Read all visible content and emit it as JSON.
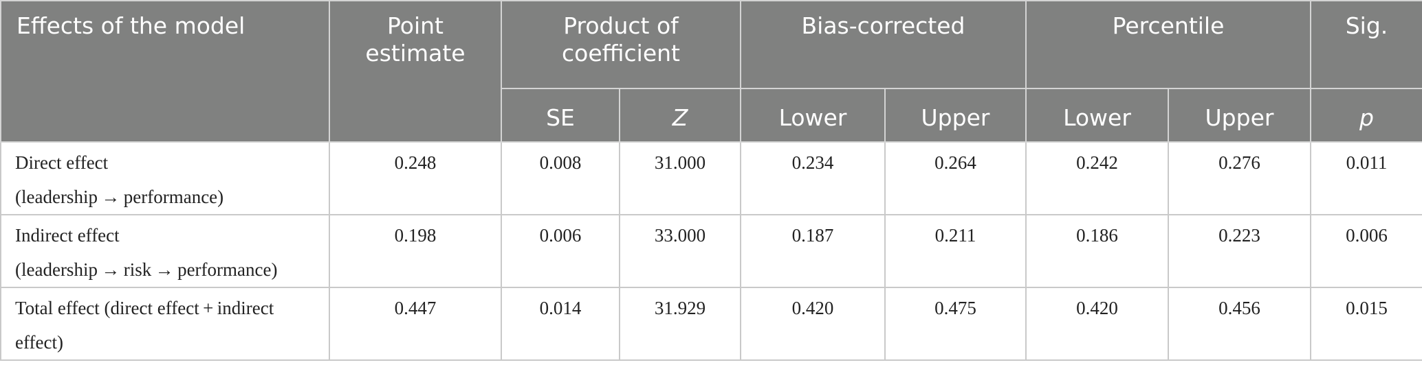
{
  "table": {
    "header": {
      "effects": "Effects of the model",
      "point_estimate": "Point estimate",
      "product": "Product of coefficient",
      "bias": "Bias-corrected",
      "percentile": "Percentile",
      "sig": "Sig.",
      "se": "SE",
      "z": "Z",
      "bc_lower": "Lower",
      "bc_upper": "Upper",
      "pc_lower": "Lower",
      "pc_upper": "Upper",
      "p": "p"
    },
    "rows": [
      {
        "label_line1": "Direct effect",
        "label_line2": "(leadership → performance)",
        "point": "0.248",
        "se": "0.008",
        "z": "31.000",
        "bc_lower": "0.234",
        "bc_upper": "0.264",
        "pc_lower": "0.242",
        "pc_upper": "0.276",
        "p": "0.011"
      },
      {
        "label_line1": "Indirect effect",
        "label_line2": "(leadership → risk → performance)",
        "point": "0.198",
        "se": "0.006",
        "z": "33.000",
        "bc_lower": "0.187",
        "bc_upper": "0.211",
        "pc_lower": "0.186",
        "pc_upper": "0.223",
        "p": "0.006"
      },
      {
        "label_line1": "Total effect (direct effect + indirect",
        "label_line2": "effect)",
        "point": "0.447",
        "se": "0.014",
        "z": "31.929",
        "bc_lower": "0.420",
        "bc_upper": "0.475",
        "pc_lower": "0.420",
        "pc_upper": "0.456",
        "p": "0.015"
      }
    ]
  }
}
